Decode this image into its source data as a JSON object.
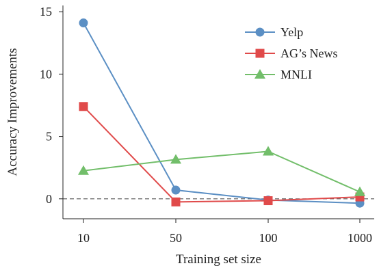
{
  "chart_data": {
    "type": "line",
    "xlabel": "Training set size",
    "ylabel": "Accuracy Improvements",
    "categories": [
      "10",
      "50",
      "100",
      "1000"
    ],
    "ylim": [
      -1.6,
      15.5
    ],
    "yticks": [
      0,
      5,
      10,
      15
    ],
    "reference_line": {
      "y": 0,
      "style": "dashed"
    },
    "legend_position": "top-right",
    "series": [
      {
        "name": "Yelp",
        "values": [
          14.1,
          0.7,
          -0.1,
          -0.35
        ],
        "color": "#5b8fc4",
        "marker": "circle"
      },
      {
        "name": "AG’s News",
        "values": [
          7.4,
          -0.25,
          -0.15,
          0.15
        ],
        "color": "#e04a4a",
        "marker": "square"
      },
      {
        "name": "MNLI",
        "values": [
          2.25,
          3.15,
          3.8,
          0.55
        ],
        "color": "#72be6a",
        "marker": "triangle"
      }
    ]
  }
}
